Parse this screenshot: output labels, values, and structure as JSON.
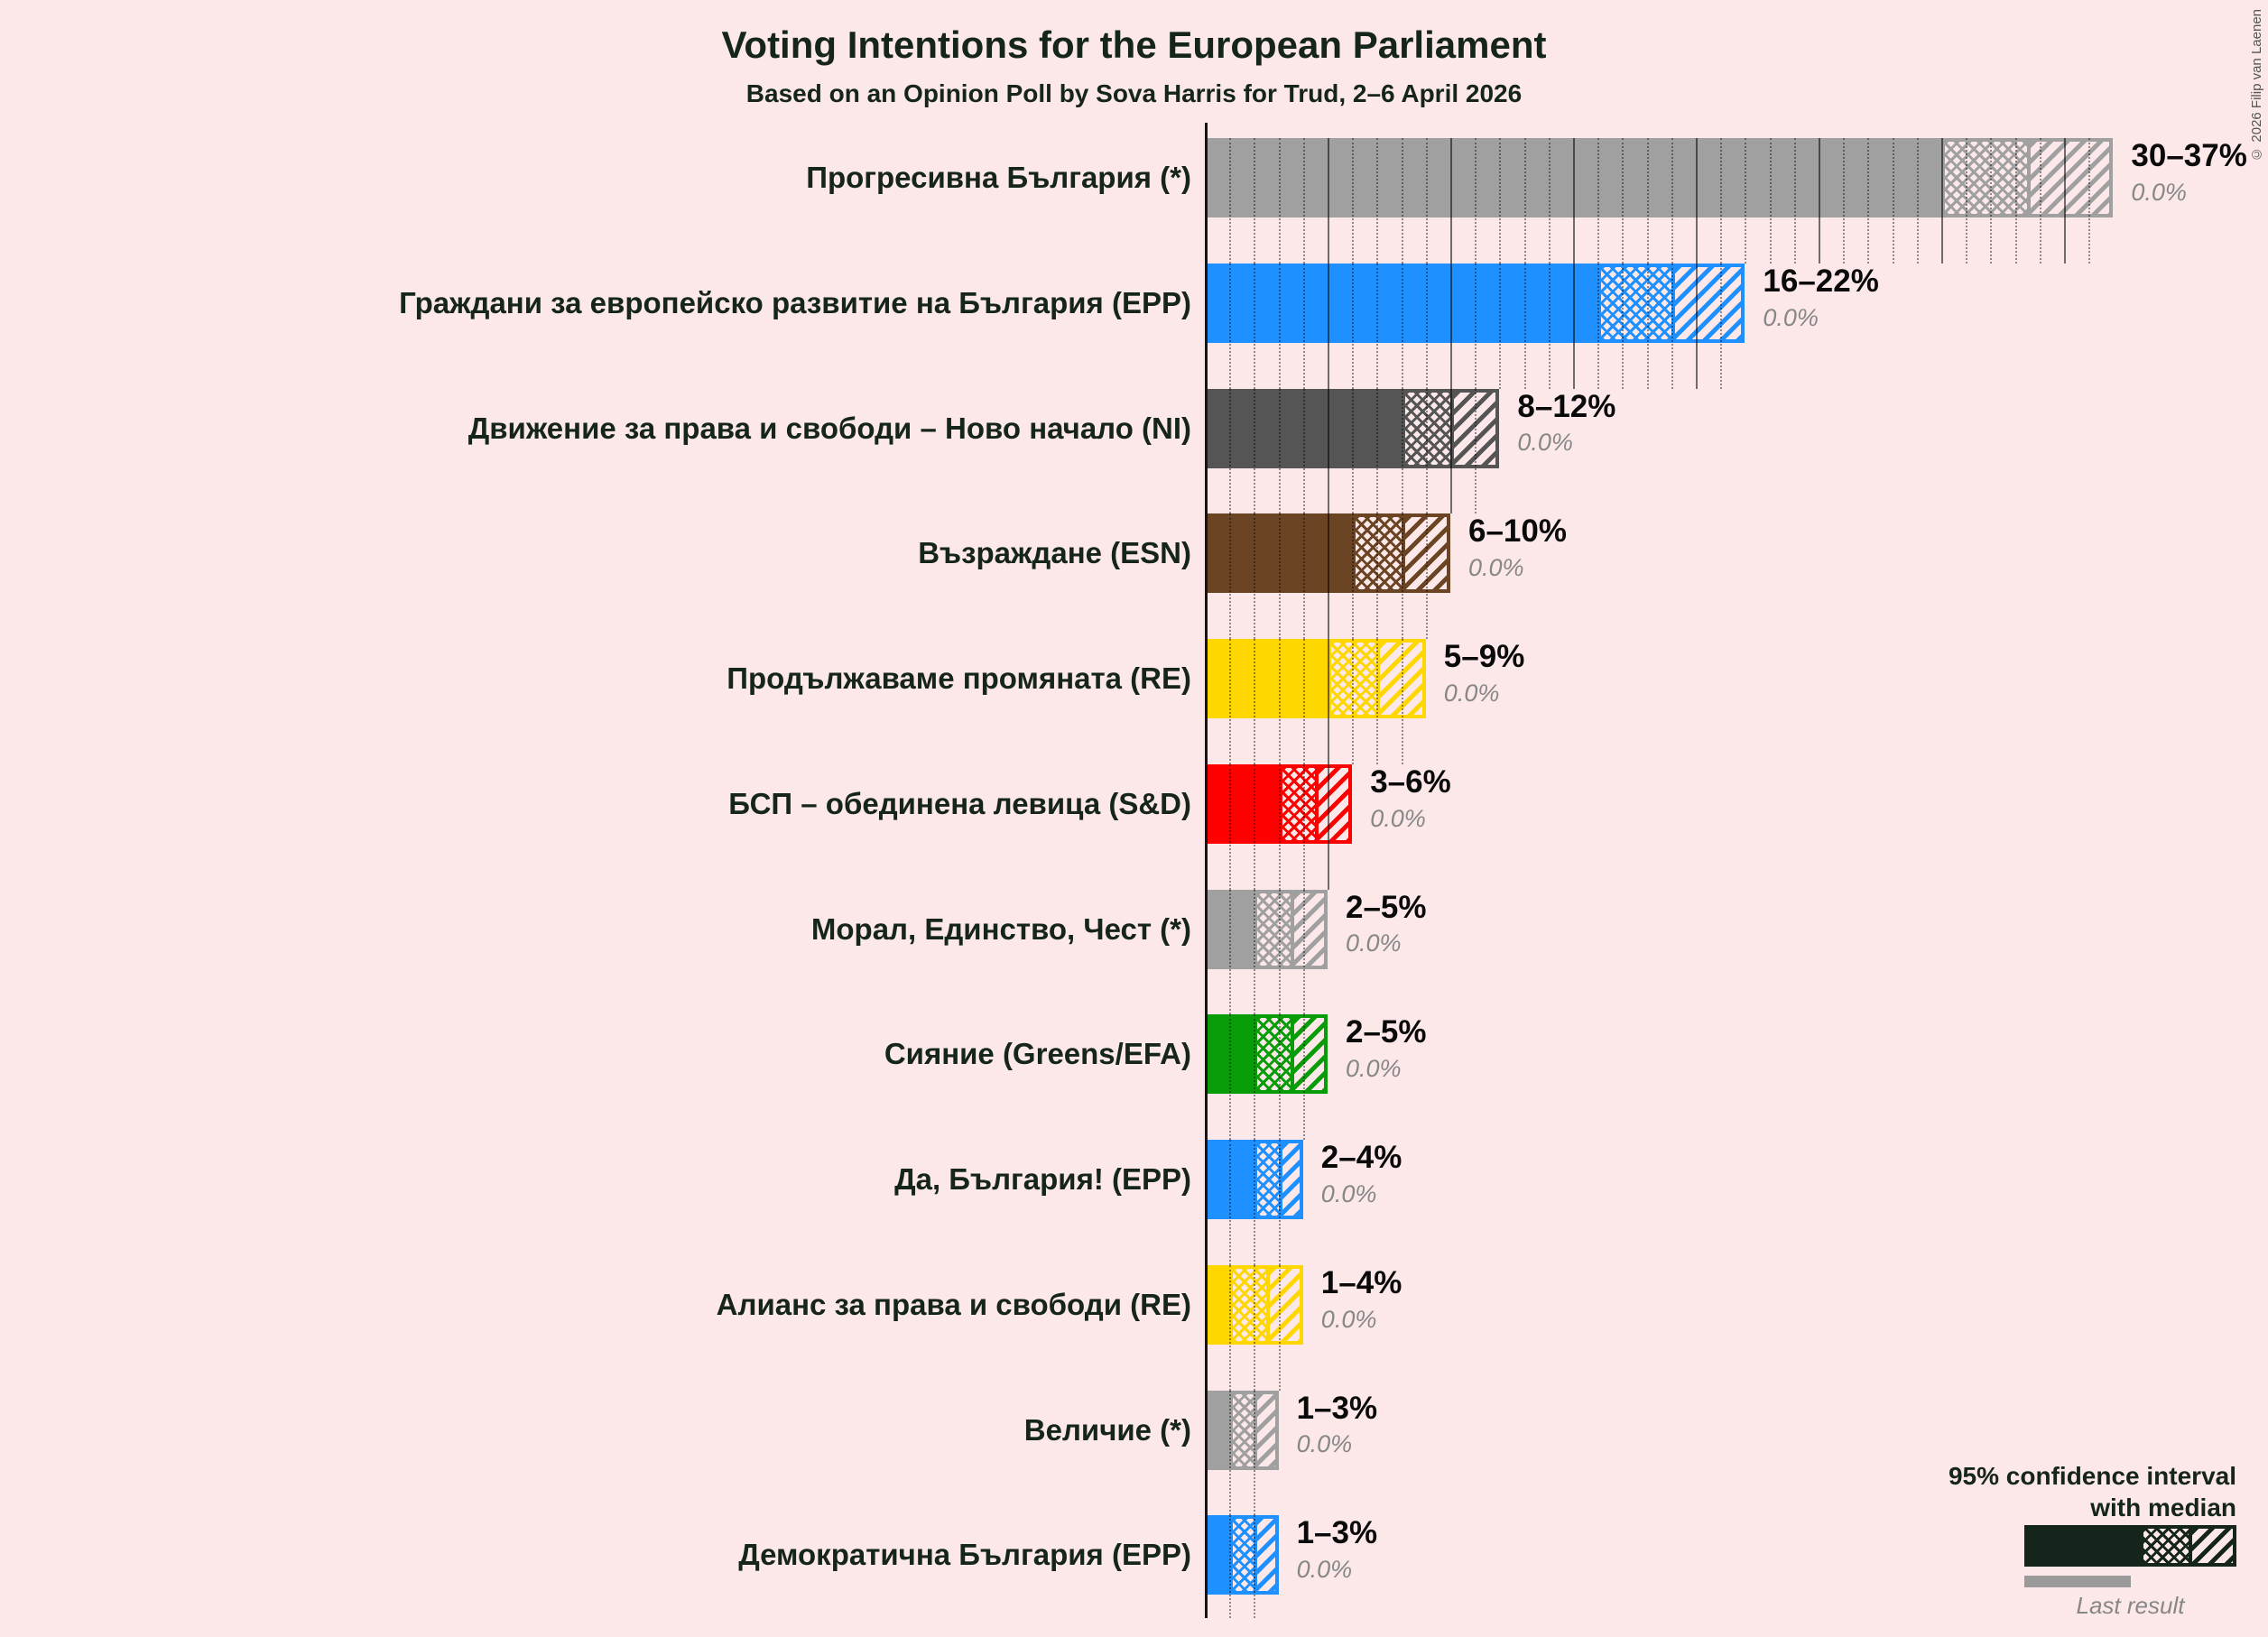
{
  "page": {
    "background_color": "#fce8e8",
    "copyright": "© 2026 Filip van Laenen"
  },
  "header": {
    "title": "Voting Intentions for the European Parliament",
    "subtitle": "Based on an Opinion Poll by Sova Harris for Trud, 2–6 April 2026"
  },
  "legend": {
    "line1": "95% confidence interval",
    "line2": "with median",
    "last_result_label": "Last result"
  },
  "chart_data": {
    "type": "bar",
    "orientation": "horizontal",
    "title": "Voting Intentions for the European Parliament",
    "subtitle": "Based on an Opinion Poll by Sova Harris for Trud, 2–6 April 2026",
    "unit": "%",
    "x_axis": {
      "min": 0,
      "max": 37,
      "minor_grid_step": 1,
      "major_grid_step": 5
    },
    "bar_style_note": "solid fill to CI lower bound, crosshatch from lower bound to median, diagonal hatch from median to upper bound; gridlines form staircase limited to each row's upper bound",
    "parties": [
      {
        "label": "Прогресивна България (*)",
        "ci_low": 30,
        "median": 33.5,
        "ci_high": 37,
        "range_label": "30–37%",
        "last_result": 0.0,
        "last_result_label": "0.0%",
        "color": "#a0a0a0"
      },
      {
        "label": "Граждани за европейско развитие на България (EPP)",
        "ci_low": 16,
        "median": 19,
        "ci_high": 22,
        "range_label": "16–22%",
        "last_result": 0.0,
        "last_result_label": "0.0%",
        "color": "#1e90ff"
      },
      {
        "label": "Движение за права и свободи – Ново начало (NI)",
        "ci_low": 8,
        "median": 10,
        "ci_high": 12,
        "range_label": "8–12%",
        "last_result": 0.0,
        "last_result_label": "0.0%",
        "color": "#555555"
      },
      {
        "label": "Възраждане (ESN)",
        "ci_low": 6,
        "median": 8,
        "ci_high": 10,
        "range_label": "6–10%",
        "last_result": 0.0,
        "last_result_label": "0.0%",
        "color": "#6b4423"
      },
      {
        "label": "Продължаваме промяната (RE)",
        "ci_low": 5,
        "median": 7,
        "ci_high": 9,
        "range_label": "5–9%",
        "last_result": 0.0,
        "last_result_label": "0.0%",
        "color": "#ffd700"
      },
      {
        "label": "БСП – обединена левица (S&D)",
        "ci_low": 3,
        "median": 4.5,
        "ci_high": 6,
        "range_label": "3–6%",
        "last_result": 0.0,
        "last_result_label": "0.0%",
        "color": "#ff0000"
      },
      {
        "label": "Морал, Единство, Чест (*)",
        "ci_low": 2,
        "median": 3.5,
        "ci_high": 5,
        "range_label": "2–5%",
        "last_result": 0.0,
        "last_result_label": "0.0%",
        "color": "#a0a0a0"
      },
      {
        "label": "Сияние (Greens/EFA)",
        "ci_low": 2,
        "median": 3.5,
        "ci_high": 5,
        "range_label": "2–5%",
        "last_result": 0.0,
        "last_result_label": "0.0%",
        "color": "#089d08"
      },
      {
        "label": "Да, България! (EPP)",
        "ci_low": 2,
        "median": 3,
        "ci_high": 4,
        "range_label": "2–4%",
        "last_result": 0.0,
        "last_result_label": "0.0%",
        "color": "#1e90ff"
      },
      {
        "label": "Алианс за права и свободи (RE)",
        "ci_low": 1,
        "median": 2.5,
        "ci_high": 4,
        "range_label": "1–4%",
        "last_result": 0.0,
        "last_result_label": "0.0%",
        "color": "#ffd700"
      },
      {
        "label": "Величие (*)",
        "ci_low": 1,
        "median": 2,
        "ci_high": 3,
        "range_label": "1–3%",
        "last_result": 0.0,
        "last_result_label": "0.0%",
        "color": "#a0a0a0"
      },
      {
        "label": "Демократична България (EPP)",
        "ci_low": 1,
        "median": 2,
        "ci_high": 3,
        "range_label": "1–3%",
        "last_result": 0.0,
        "last_result_label": "0.0%",
        "color": "#1e90ff"
      }
    ]
  }
}
